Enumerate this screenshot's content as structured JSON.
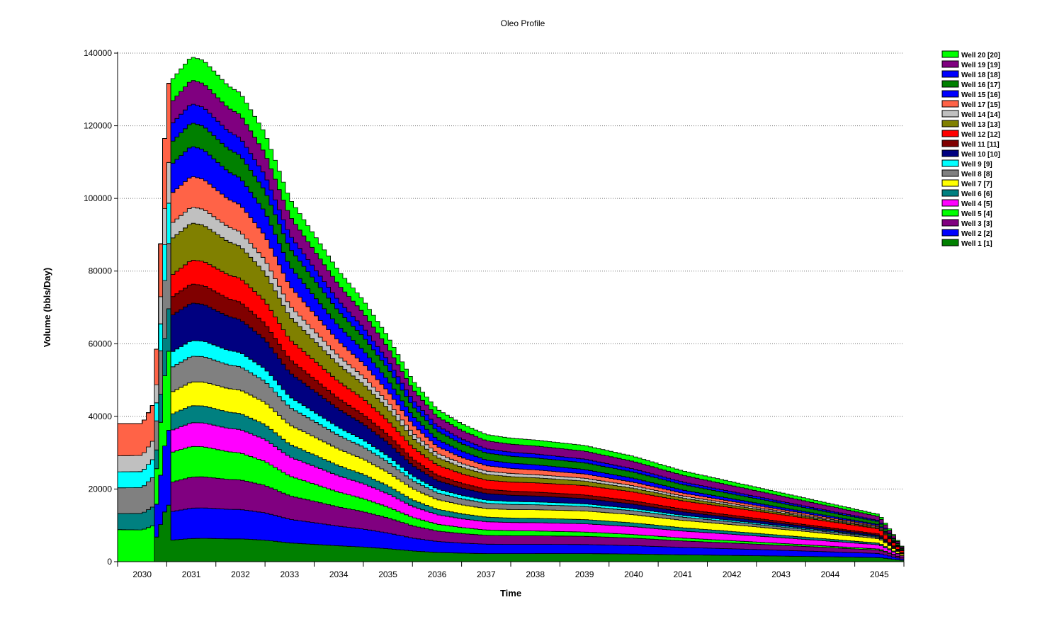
{
  "chart_data": {
    "type": "area",
    "stacked": true,
    "title": "Oleo Profile",
    "xlabel": "Time",
    "ylabel": "Volume (bbls/Day)",
    "x_start": 2029.5,
    "x_end": 2045.5,
    "ylim": [
      0,
      140000
    ],
    "y_ticks": [
      0,
      20000,
      40000,
      60000,
      80000,
      100000,
      120000,
      140000
    ],
    "y_tick_labels": [
      "0",
      "20000",
      "40000",
      "60000",
      "80000",
      "100000",
      "120000",
      "140000"
    ],
    "x_ticks": [
      2030,
      2031,
      2032,
      2033,
      2034,
      2035,
      2036,
      2037,
      2038,
      2039,
      2040,
      2041,
      2042,
      2043,
      2044,
      2045
    ],
    "x_tick_labels": [
      "2030",
      "2031",
      "2032",
      "2033",
      "2034",
      "2035",
      "2036",
      "2037",
      "2038",
      "2039",
      "2040",
      "2041",
      "2042",
      "2043",
      "2044",
      "2045"
    ],
    "grid": "horizontal dotted",
    "legend_position": "top-right",
    "legend_order": [
      "Well 20 [20]",
      "Well 19 [19]",
      "Well 18 [18]",
      "Well 16 [17]",
      "Well 15 [16]",
      "Well 17 [15]",
      "Well 14 [14]",
      "Well 13 [13]",
      "Well 12 [12]",
      "Well 11 [11]",
      "Well 10 [10]",
      "Well 9 [9]",
      "Well 8 [8]",
      "Well 7 [7]",
      "Well 6 [6]",
      "Well 4 [5]",
      "Well 5 [4]",
      "Well 3 [3]",
      "Well 2 [2]",
      "Well 1 [1]"
    ],
    "series": [
      {
        "name": "Well 1 [1]",
        "color": "#008000",
        "start": 2030.25,
        "q0": 6000,
        "decline": 0.075
      },
      {
        "name": "Well 2 [2]",
        "color": "#0000ff",
        "start": 2030.25,
        "q0": 8000,
        "decline": 0.095
      },
      {
        "name": "Well 3 [3]",
        "color": "#800080",
        "start": 2030.55,
        "q0": 8000,
        "decline": 0.11
      },
      {
        "name": "Well 5 [4]",
        "color": "#00ff00",
        "start": 2029.5,
        "q0": 10000,
        "decline": 0.19
      },
      {
        "name": "Well 4 [5]",
        "color": "#ff00ff",
        "start": 2030.55,
        "q0": 6000,
        "decline": 0.075
      },
      {
        "name": "Well 6 [6]",
        "color": "#008080",
        "start": 2029.5,
        "q0": 5000,
        "decline": 0.12
      },
      {
        "name": "Well 7 [7]",
        "color": "#ffff00",
        "start": 2030.55,
        "q0": 6000,
        "decline": 0.07
      },
      {
        "name": "Well 8 [8]",
        "color": "#808080",
        "start": 2029.5,
        "q0": 8000,
        "decline": 0.16
      },
      {
        "name": "Well 9 [9]",
        "color": "#00ffff",
        "start": 2029.5,
        "q0": 5000,
        "decline": 0.17
      },
      {
        "name": "Well 10 [10]",
        "color": "#000080",
        "start": 2030.55,
        "q0": 10000,
        "decline": 0.19
      },
      {
        "name": "Well 11 [11]",
        "color": "#800000",
        "start": 2030.55,
        "q0": 5000,
        "decline": 0.15
      },
      {
        "name": "Well 12 [12]",
        "color": "#ff0000",
        "start": 2030.55,
        "q0": 6000,
        "decline": 0.06
      },
      {
        "name": "Well 13 [13]",
        "color": "#808000",
        "start": 2030.55,
        "q0": 10000,
        "decline": 0.21
      },
      {
        "name": "Well 14 [14]",
        "color": "#c0c0c0",
        "start": 2029.5,
        "q0": 5000,
        "decline": 0.16
      },
      {
        "name": "Well 17 [15]",
        "color": "#ff6347",
        "start": 2029.5,
        "q0": 10000,
        "decline": 0.19
      },
      {
        "name": "Well 15 [16]",
        "color": "#0000ff",
        "start": 2030.55,
        "q0": 8000,
        "decline": 0.18
      },
      {
        "name": "Well 16 [17]",
        "color": "#008000",
        "start": 2030.55,
        "q0": 6000,
        "decline": 0.1
      },
      {
        "name": "Well 18 [18]",
        "color": "#0000ff",
        "start": 2030.55,
        "q0": 5000,
        "decline": 0.15
      },
      {
        "name": "Well 19 [19]",
        "color": "#800080",
        "start": 2030.55,
        "q0": 6000,
        "decline": 0.08
      },
      {
        "name": "Well 20 [20]",
        "color": "#00ff00",
        "start": 2030.55,
        "q0": 6000,
        "decline": 0.12
      }
    ],
    "total_profile": {
      "x": [
        2029.5,
        2030.0,
        2030.25,
        2030.5,
        2031.0,
        2031.25,
        2031.75,
        2032.0,
        2032.5,
        2033.0,
        2033.5,
        2034.0,
        2034.5,
        2035.0,
        2035.5,
        2036.0,
        2036.5,
        2037.0,
        2037.5,
        2038.0,
        2039.0,
        2040.0,
        2041.0,
        2042.0,
        2043.0,
        2044.0,
        2045.0,
        2045.5
      ],
      "total": [
        38000,
        38000,
        44000,
        131000,
        139000,
        138000,
        131000,
        129000,
        118000,
        100000,
        90000,
        80000,
        72000,
        62000,
        50000,
        42000,
        38000,
        35000,
        34000,
        33500,
        32000,
        29000,
        25000,
        22000,
        19000,
        16000,
        13000,
        3500
      ]
    }
  }
}
